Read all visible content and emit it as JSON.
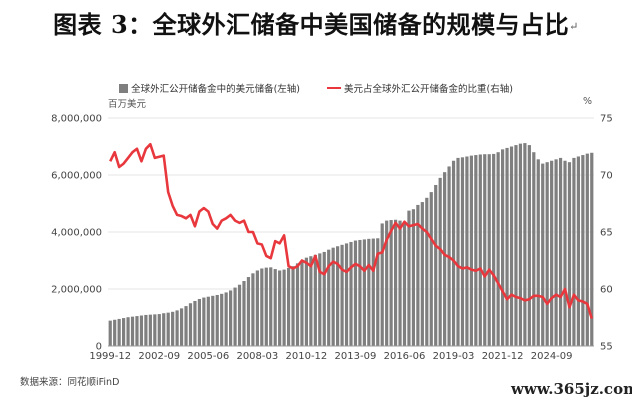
{
  "figure": {
    "title": "图表 3：全球外汇储备中美国储备的规模与占比",
    "title_mark": "↵",
    "unit_left": "百万美元",
    "unit_right": "%",
    "source": "数据来源：同花顺iFinD",
    "watermark": "www.365jz.com"
  },
  "chart_data": {
    "type": "bar+line",
    "title": "图表 3：全球外汇储备中美国储备的规模与占比",
    "xlabel": "",
    "ylabel_left": "百万美元",
    "ylabel_right": "%",
    "ylim_left": [
      0,
      8000000
    ],
    "ylim_right": [
      55,
      75
    ],
    "left_ticks": [
      "0",
      "2,000,000",
      "4,000,000",
      "6,000,000",
      "8,000,000"
    ],
    "right_ticks": [
      "55",
      "60",
      "65",
      "70",
      "75"
    ],
    "x_ticks": [
      "1999-12",
      "2002-09",
      "2005-06",
      "2008-03",
      "2010-12",
      "2013-09",
      "2016-06",
      "2019-03",
      "2021-12",
      "2024-09"
    ],
    "legend": [
      "全球外汇公开储备金中的美元储备(左轴)",
      "美元占全球外汇公开储备金的比重(右轴)"
    ],
    "colors": {
      "bars": "#7f7f7f",
      "line": "#e8383d"
    },
    "start_quarter": "1999-12",
    "series": [
      {
        "name": "全球外汇公开储备金中的美元储备(左轴)",
        "axis": "left",
        "type": "bar",
        "values": [
          890000,
          920000,
          950000,
          980000,
          1010000,
          1030000,
          1050000,
          1070000,
          1090000,
          1100000,
          1110000,
          1120000,
          1150000,
          1170000,
          1200000,
          1250000,
          1320000,
          1400000,
          1500000,
          1580000,
          1650000,
          1700000,
          1730000,
          1760000,
          1790000,
          1830000,
          1880000,
          1950000,
          2050000,
          2150000,
          2280000,
          2420000,
          2550000,
          2650000,
          2720000,
          2750000,
          2760000,
          2700000,
          2650000,
          2680000,
          2740000,
          2800000,
          2900000,
          3000000,
          3100000,
          3150000,
          3200000,
          3250000,
          3300000,
          3380000,
          3450000,
          3500000,
          3550000,
          3600000,
          3650000,
          3700000,
          3720000,
          3740000,
          3760000,
          3770000,
          3780000,
          4300000,
          4400000,
          4420000,
          4430000,
          4400000,
          4350000,
          4750000,
          4800000,
          4950000,
          5050000,
          5200000,
          5400000,
          5650000,
          5900000,
          6100000,
          6300000,
          6500000,
          6600000,
          6620000,
          6650000,
          6680000,
          6700000,
          6720000,
          6730000,
          6730000,
          6740000,
          6800000,
          6900000,
          6950000,
          7000000,
          7050000,
          7100000,
          7120000,
          7050000,
          6800000,
          6550000,
          6400000,
          6450000,
          6500000,
          6550000,
          6600000,
          6500000,
          6450000,
          6600000,
          6650000,
          6700000,
          6750000,
          6780000
        ]
      },
      {
        "name": "美元占全球外汇公开储备金的比重(右轴)",
        "axis": "right",
        "type": "line",
        "values": [
          71.2,
          72.0,
          70.7,
          71.0,
          71.5,
          72.0,
          72.3,
          71.2,
          72.3,
          72.7,
          71.5,
          71.6,
          71.7,
          68.5,
          67.3,
          66.5,
          66.4,
          66.2,
          66.5,
          65.5,
          66.8,
          67.1,
          66.8,
          65.7,
          65.3,
          66.0,
          66.2,
          66.5,
          66.0,
          65.8,
          66.0,
          65.0,
          65.0,
          64.0,
          63.9,
          62.9,
          62.7,
          64.2,
          64.0,
          64.7,
          62.0,
          61.8,
          62.0,
          62.5,
          62.3,
          62.0,
          62.9,
          61.5,
          61.3,
          62.0,
          62.4,
          62.2,
          61.7,
          61.5,
          61.9,
          62.2,
          62.0,
          61.6,
          62.1,
          61.6,
          63.1,
          63.2,
          64.3,
          65.1,
          65.8,
          65.3,
          65.9,
          65.5,
          65.6,
          65.7,
          65.3,
          65.0,
          64.4,
          63.8,
          63.5,
          63.0,
          62.8,
          62.5,
          62.0,
          61.8,
          61.9,
          61.7,
          61.6,
          61.8,
          61.1,
          61.7,
          61.2,
          60.5,
          59.8,
          59.1,
          59.5,
          59.3,
          59.2,
          59.0,
          59.1,
          59.4,
          59.4,
          59.3,
          58.7,
          59.2,
          59.5,
          59.3,
          60.0,
          58.4,
          59.5,
          59.0,
          58.9,
          58.7,
          57.4
        ]
      }
    ]
  }
}
